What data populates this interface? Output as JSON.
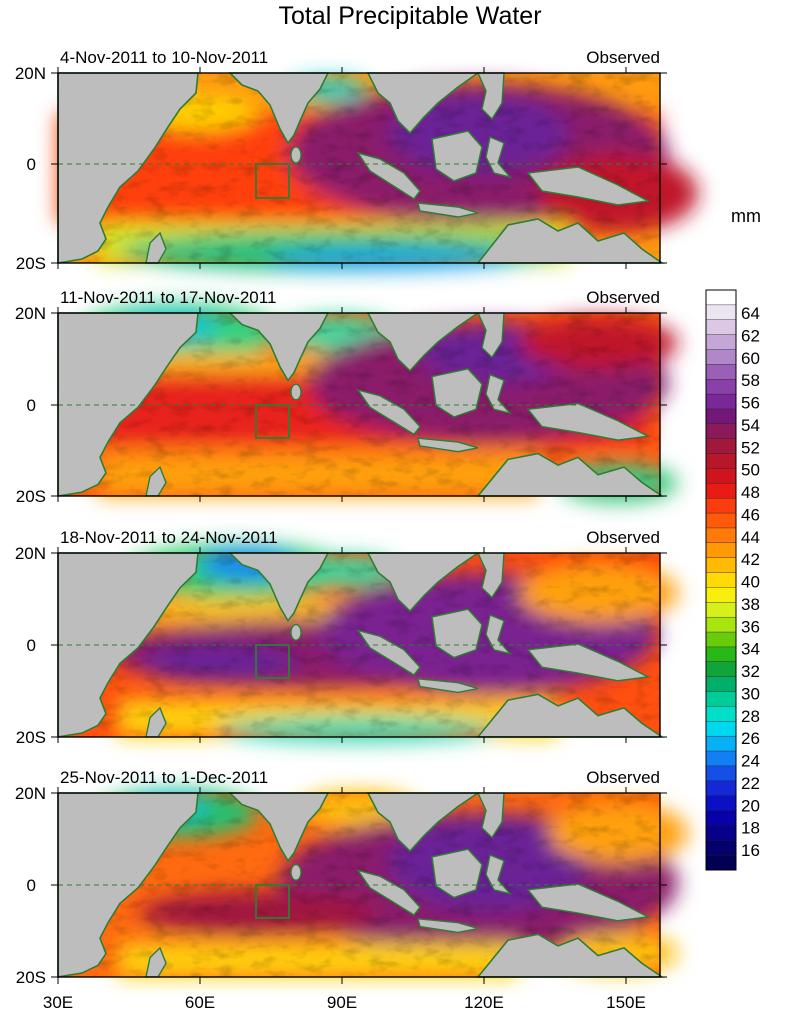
{
  "title": "Total Precipitable Water",
  "units": "mm",
  "y_ticks": [
    "20N",
    "0",
    "20S"
  ],
  "x_ticks": [
    "30E",
    "60E",
    "90E",
    "120E",
    "150E"
  ],
  "panels": [
    {
      "date_range": "4-Nov-2011 to 10-Nov-2011",
      "label": "Observed"
    },
    {
      "date_range": "11-Nov-2011 to 17-Nov-2011",
      "label": "Observed"
    },
    {
      "date_range": "18-Nov-2011 to 24-Nov-2011",
      "label": "Observed"
    },
    {
      "date_range": "25-Nov-2011 to 1-Dec-2011",
      "label": "Observed"
    }
  ],
  "colorbar": {
    "labels": [
      "64",
      "62",
      "60",
      "58",
      "56",
      "54",
      "52",
      "50",
      "48",
      "46",
      "44",
      "42",
      "40",
      "38",
      "36",
      "34",
      "32",
      "30",
      "28",
      "26",
      "24",
      "22",
      "20",
      "18",
      "16"
    ],
    "colors": [
      "#ffffff",
      "#ece4f0",
      "#dcc8e4",
      "#c6a6d6",
      "#b088c8",
      "#9a60b8",
      "#8a40a8",
      "#7a2898",
      "#741878",
      "#8a1a5a",
      "#a0183c",
      "#b8162a",
      "#d0141e",
      "#e81c14",
      "#fa3c0e",
      "#ff5a0a",
      "#ff7a08",
      "#ff9a06",
      "#ffba04",
      "#ffda04",
      "#f8f00a",
      "#d8f01a",
      "#a8e40e",
      "#68cc0a",
      "#28b818",
      "#10a43a",
      "#00b06a",
      "#00cc9a",
      "#00e0c8",
      "#00d8f0",
      "#08b0f8",
      "#1080f4",
      "#1450e8",
      "#1428d8",
      "#0c10c4",
      "#0800a8",
      "#06008a",
      "#04006c",
      "#020052"
    ]
  },
  "box_region": "region box near 73E-80E, 0-7S"
}
